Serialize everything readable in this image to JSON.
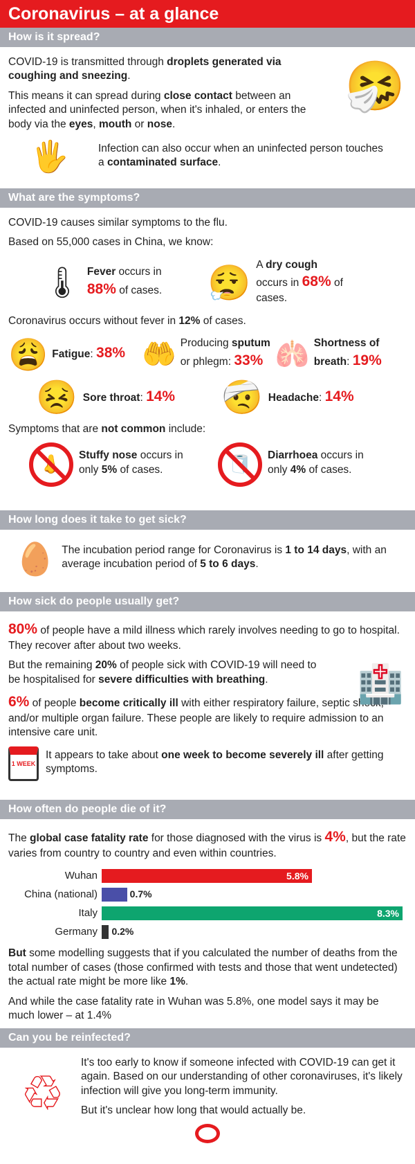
{
  "title": "Coronavirus – at a glance",
  "colors": {
    "accent": "#e51b1f",
    "header_bg": "#a8abb3",
    "wuhan": "#e51b1f",
    "china": "#4a4fa8",
    "italy": "#0ea56f",
    "germany": "#333333"
  },
  "spread": {
    "heading": "How is it spread?",
    "p1": [
      [
        "COVID-19 is transmitted through ",
        ""
      ],
      [
        "droplets generated via coughing and sneezing",
        "b"
      ],
      [
        ".",
        ""
      ]
    ],
    "p2": [
      [
        "This means it can spread during ",
        ""
      ],
      [
        "close contact",
        "b"
      ],
      [
        " between an infected and uninfected person, when it's inhaled, or enters the body via the ",
        ""
      ],
      [
        "eyes",
        "b"
      ],
      [
        ", ",
        ""
      ],
      [
        "mouth",
        "b"
      ],
      [
        " or ",
        ""
      ],
      [
        "nose",
        "b"
      ],
      [
        ".",
        ""
      ]
    ],
    "p3": [
      [
        "Infection can also occur when an uninfected person touches a ",
        ""
      ],
      [
        "contaminated surface",
        "b"
      ],
      [
        ".",
        ""
      ]
    ]
  },
  "symptoms": {
    "heading": "What are the symptoms?",
    "p1": [
      [
        "COVID-19 causes similar symptoms to the flu.",
        ""
      ]
    ],
    "p2": [
      [
        "Based on 55,000 cases in China, we know:",
        ""
      ]
    ],
    "fever": [
      [
        "Fever",
        "b"
      ],
      [
        " occurs in ",
        ""
      ],
      [
        "88%",
        "r"
      ],
      [
        " of cases.",
        ""
      ]
    ],
    "cough": [
      [
        "A ",
        ""
      ],
      [
        "dry cough",
        "b"
      ],
      [
        " occurs in ",
        ""
      ],
      [
        "68%",
        "r"
      ],
      [
        " of cases.",
        ""
      ]
    ],
    "p3": [
      [
        "Coronavirus occurs without fever in ",
        ""
      ],
      [
        "12%",
        "b"
      ],
      [
        " of cases.",
        ""
      ]
    ],
    "fatigue": [
      [
        "Fatigue",
        "b"
      ],
      [
        ": ",
        ""
      ],
      [
        "38%",
        "r"
      ]
    ],
    "sputum": [
      [
        "Producing ",
        ""
      ],
      [
        "sputum",
        "b"
      ],
      [
        " or phlegm: ",
        ""
      ],
      [
        "33%",
        "r"
      ]
    ],
    "breath": [
      [
        "Shortness of breath",
        "b"
      ],
      [
        ": ",
        ""
      ],
      [
        "19%",
        "r"
      ]
    ],
    "throat": [
      [
        "Sore throat",
        "b"
      ],
      [
        ": ",
        ""
      ],
      [
        "14%",
        "r"
      ]
    ],
    "headache": [
      [
        "Headache",
        "b"
      ],
      [
        ": ",
        ""
      ],
      [
        "14%",
        "r"
      ]
    ],
    "p4": [
      [
        "Symptoms that are ",
        ""
      ],
      [
        "not common",
        "b"
      ],
      [
        " include:",
        ""
      ]
    ],
    "nose": [
      [
        "Stuffy nose",
        "b"
      ],
      [
        " occurs in only ",
        ""
      ],
      [
        "5%",
        "b"
      ],
      [
        " of cases.",
        ""
      ]
    ],
    "diarrhoea": [
      [
        "Diarrhoea",
        "b"
      ],
      [
        " occurs in only ",
        ""
      ],
      [
        "4%",
        "b"
      ],
      [
        " of cases.",
        ""
      ]
    ]
  },
  "incubation": {
    "heading": "How long does it take to get sick?",
    "p1": [
      [
        "The incubation period range for Coronavirus is ",
        ""
      ],
      [
        "1 to 14 days",
        "b"
      ],
      [
        ", with an average incubation period of ",
        ""
      ],
      [
        "5 to 6 days",
        "b"
      ],
      [
        ".",
        ""
      ]
    ]
  },
  "severity": {
    "heading": "How sick do people usually get?",
    "p1": [
      [
        "80%",
        "r"
      ],
      [
        " of people have a mild illness which rarely involves needing to go to hospital. They recover after about two weeks.",
        ""
      ]
    ],
    "p2": [
      [
        "But the remaining ",
        ""
      ],
      [
        "20%",
        "b"
      ],
      [
        " of people sick with COVID-19 will need to be hospitalised for ",
        ""
      ],
      [
        "severe difficulties with breathing",
        "b"
      ],
      [
        ".",
        ""
      ]
    ],
    "p3": [
      [
        "6%",
        "r"
      ],
      [
        " of people ",
        ""
      ],
      [
        "become critically ill",
        "b"
      ],
      [
        " with either respiratory failure, septic shock, and/or multiple organ failure. These people are likely to require admission to an intensive care unit.",
        ""
      ]
    ],
    "p4": [
      [
        "It appears to take about ",
        ""
      ],
      [
        "one week to become severely ill",
        "b"
      ],
      [
        " after getting symptoms.",
        ""
      ]
    ],
    "calendar_text": "1 WEEK"
  },
  "fatality": {
    "heading": "How often do people die of it?",
    "p1": [
      [
        "The ",
        ""
      ],
      [
        "global case fatality rate",
        "b"
      ],
      [
        " for those diagnosed with the virus is ",
        ""
      ],
      [
        "4%",
        "r"
      ],
      [
        ", but the rate varies from country to country and even within countries.",
        ""
      ]
    ],
    "p2": [
      [
        "But",
        "b"
      ],
      [
        " some modelling suggests that if you calculated the number of deaths from the total number of cases (those confirmed with tests and those that went undetected) the actual rate might be more like ",
        ""
      ],
      [
        "1%",
        "b"
      ],
      [
        ".",
        ""
      ]
    ],
    "p3": [
      [
        "And while the case fatality rate in Wuhan was 5.8%, one model says it may be much lower – at 1.4%",
        ""
      ]
    ]
  },
  "chart_data": {
    "type": "bar",
    "orientation": "horizontal",
    "categories": [
      "Wuhan",
      "China (national)",
      "Italy",
      "Germany"
    ],
    "values": [
      5.8,
      0.7,
      8.3,
      0.2
    ],
    "labels": [
      "5.8%",
      "0.7%",
      "8.3%",
      "0.2%"
    ],
    "colors": [
      "#e51b1f",
      "#4a4fa8",
      "#0ea56f",
      "#333333"
    ],
    "xlim": [
      0,
      8.3
    ],
    "unit": "%"
  },
  "reinfect": {
    "heading": "Can you be reinfected?",
    "p1": [
      [
        "It's too early to know if someone infected with COVID-19 can get it again. Based on our understanding of other coronaviruses, it's likely infection will give you long-term immunity.",
        ""
      ]
    ],
    "p2": [
      [
        "But it's unclear how long that would actually be.",
        ""
      ]
    ]
  }
}
